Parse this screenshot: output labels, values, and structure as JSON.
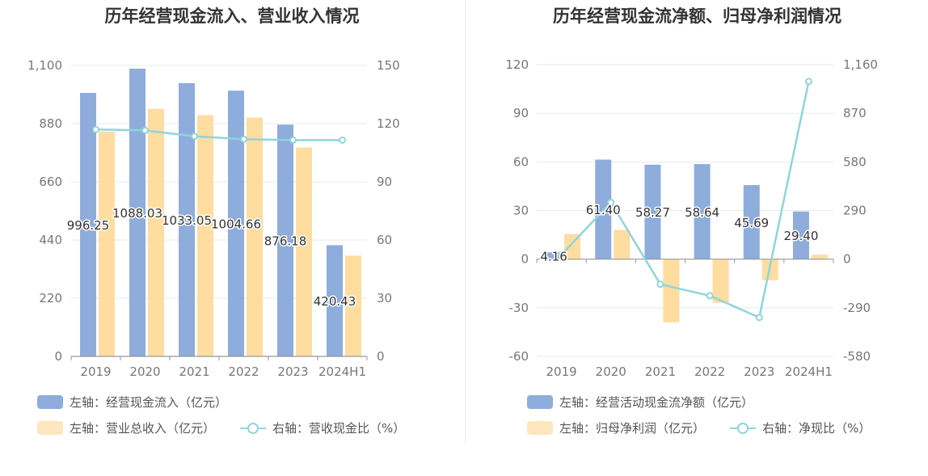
{
  "charts": [
    {
      "title": "历年经营现金流入、营业收入情况",
      "legend": [
        {
          "label": "左轴：经营现金流入（亿元）",
          "color": "#8eacdc"
        },
        {
          "label": "左轴：营业总收入（亿元）",
          "color": "#ffdca0"
        },
        {
          "label": "右轴：营收现金比（%）",
          "color": "#8fd5da"
        }
      ]
    },
    {
      "title": "历年经营现金流净额、归母净利润情况",
      "legend": [
        {
          "label": "左轴：经营活动现金流净额（亿元）",
          "color": "#8eacdc"
        },
        {
          "label": "左轴：归母净利润（亿元）",
          "color": "#ffdca0"
        },
        {
          "label": "右轴：净现比（%）",
          "color": "#8fd5da"
        }
      ]
    }
  ],
  "chart_data": [
    {
      "type": "bar",
      "title": "历年经营现金流入、营业收入情况",
      "categories": [
        "2019",
        "2020",
        "2021",
        "2022",
        "2023",
        "2024H1"
      ],
      "left_axis": {
        "ticks": [
          "0",
          "220",
          "440",
          "660",
          "880",
          "1,100"
        ],
        "range": [
          0,
          1100
        ]
      },
      "right_axis": {
        "ticks": [
          "0",
          "30",
          "60",
          "90",
          "120",
          "150"
        ],
        "range": [
          0,
          150
        ]
      },
      "series": [
        {
          "name": "左轴：经营现金流入（亿元）",
          "axis": "left",
          "kind": "bar",
          "color": "#8eacdc",
          "values": [
            996.25,
            1088.03,
            1033.05,
            1004.66,
            876.18,
            420.43
          ],
          "labels": [
            "996.25",
            "1088.03",
            "1033.05",
            "1004.66",
            "876.18",
            "420.43"
          ]
        },
        {
          "name": "左轴：营业总收入（亿元）",
          "axis": "left",
          "kind": "bar",
          "color": "#ffdca0",
          "values": [
            850,
            936,
            912,
            903,
            790,
            381
          ]
        },
        {
          "name": "右轴：营收现金比（%）",
          "axis": "right",
          "kind": "line",
          "color": "#8fd5da",
          "values": [
            117,
            116.5,
            113.5,
            112,
            111.5,
            111.5
          ]
        }
      ],
      "grid": true
    },
    {
      "type": "bar",
      "title": "历年经营现金流净额、归母净利润情况",
      "categories": [
        "2019",
        "2020",
        "2021",
        "2022",
        "2023",
        "2024H1"
      ],
      "left_axis": {
        "ticks": [
          "-60",
          "-30",
          "0",
          "30",
          "60",
          "90",
          "120"
        ],
        "range": [
          -60,
          120
        ]
      },
      "right_axis": {
        "ticks": [
          "-580",
          "-290",
          "0",
          "290",
          "580",
          "870",
          "1,160"
        ],
        "range": [
          -580,
          1160
        ]
      },
      "series": [
        {
          "name": "左轴：经营活动现金流净额（亿元）",
          "axis": "left",
          "kind": "bar",
          "color": "#8eacdc",
          "values": [
            4.16,
            61.4,
            58.27,
            58.64,
            45.69,
            29.4
          ],
          "labels": [
            "4.16",
            "61.40",
            "58.27",
            "58.64",
            "45.69",
            "29.40"
          ]
        },
        {
          "name": "左轴：归母净利润（亿元）",
          "axis": "left",
          "kind": "bar",
          "color": "#ffdca0",
          "values": [
            15.5,
            18,
            -39,
            -27,
            -13,
            2.8
          ]
        },
        {
          "name": "右轴：净现比（%）",
          "axis": "right",
          "kind": "line",
          "color": "#8fd5da",
          "values": [
            27,
            338,
            -150,
            -218,
            -348,
            1060
          ]
        }
      ],
      "grid": true
    }
  ]
}
